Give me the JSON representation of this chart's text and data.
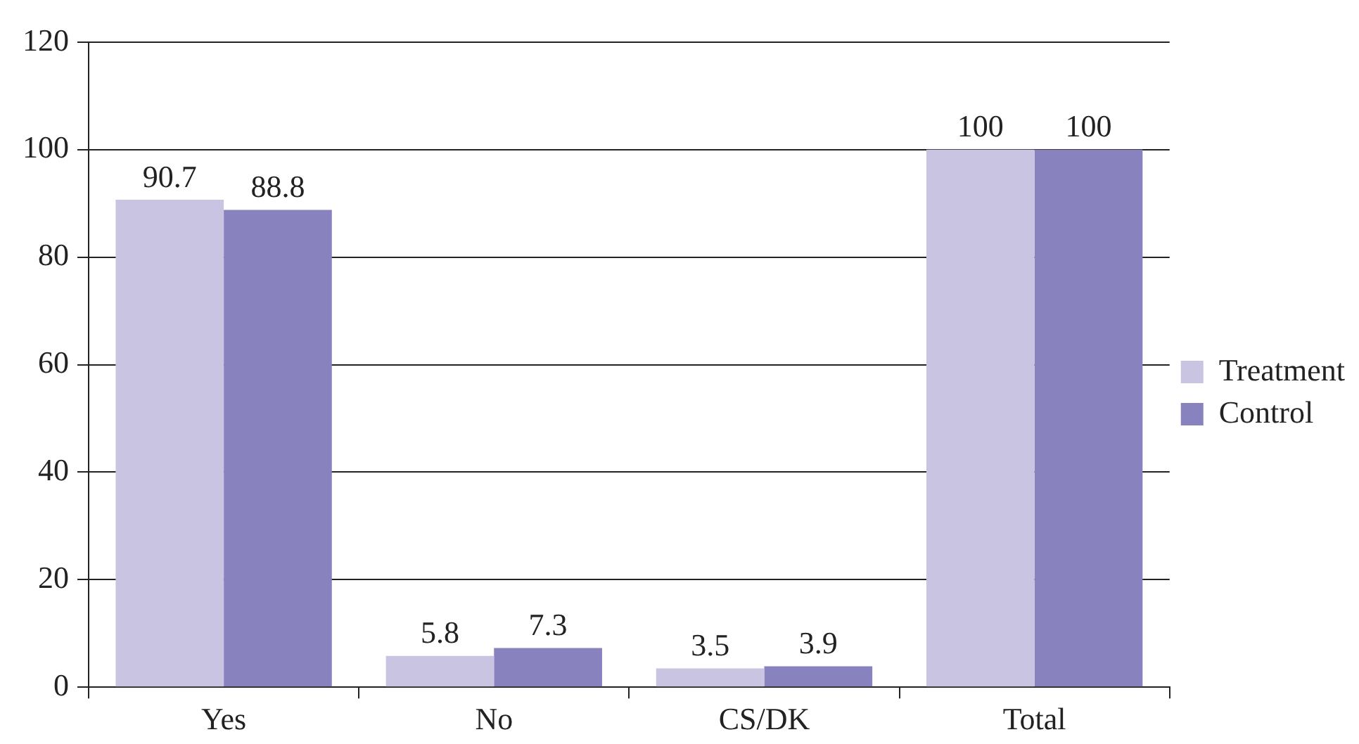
{
  "chart_data": {
    "type": "bar",
    "categories": [
      "Yes",
      "No",
      "CS/DK",
      "Total"
    ],
    "series": [
      {
        "name": "Treatment",
        "color": "#c8c4e2",
        "values": [
          90.7,
          5.8,
          3.5,
          100
        ]
      },
      {
        "name": "Control",
        "color": "#8882bf",
        "values": [
          88.8,
          7.3,
          3.9,
          100
        ]
      }
    ],
    "ylim": [
      0,
      120
    ],
    "yticks": [
      0,
      20,
      40,
      60,
      80,
      100,
      120
    ],
    "grid": "y",
    "legend": "right",
    "data_labels": true
  }
}
